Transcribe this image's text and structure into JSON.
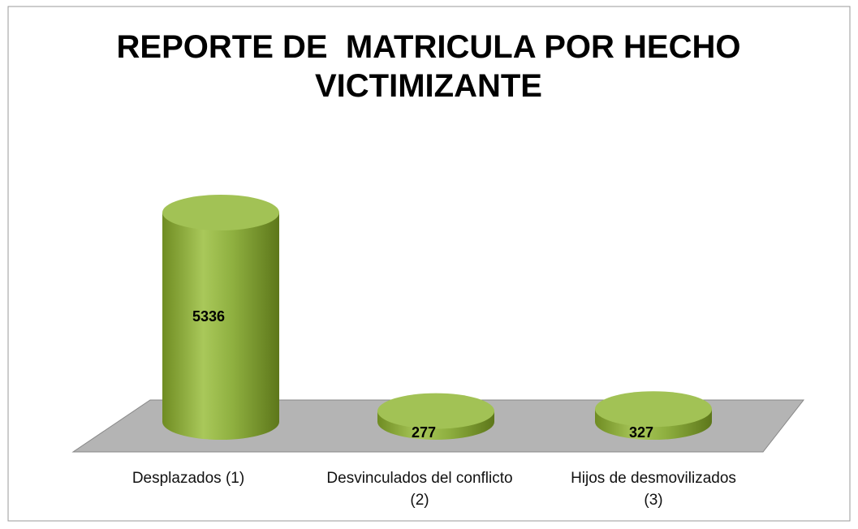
{
  "chart_data": {
    "type": "bar3d-cylinder",
    "title": "REPORTE DE  MATRICULA POR HECHO VICTIMIZANTE",
    "categories": [
      "Desplazados  (1)",
      "Desvinculados del conflicto (2)",
      "Hijos de desmovilizados (3)"
    ],
    "values": [
      5336,
      277,
      327
    ],
    "color": "#8db042"
  }
}
